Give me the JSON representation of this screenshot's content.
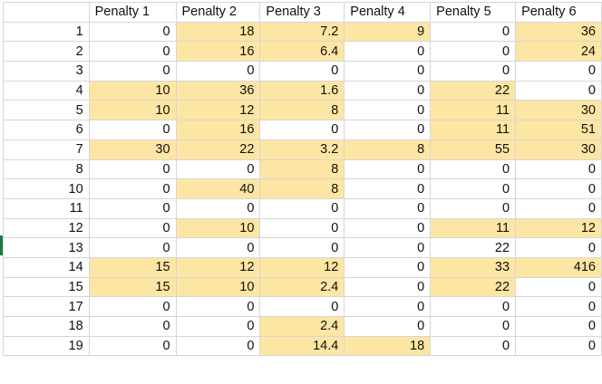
{
  "colors": {
    "highlight": "#fde6a3",
    "gridline": "#d6d6d6",
    "selection_marker": "#1d7a43"
  },
  "sheet": {
    "columns": [
      "Penalty 1",
      "Penalty 2",
      "Penalty 3",
      "Penalty 4",
      "Penalty 5",
      "Penalty 6"
    ],
    "rows": [
      {
        "id": "1",
        "values": [
          "0",
          "18",
          "7.2",
          "9",
          "0",
          "36"
        ],
        "highlight": [
          false,
          true,
          true,
          true,
          false,
          true
        ]
      },
      {
        "id": "2",
        "values": [
          "0",
          "16",
          "6.4",
          "0",
          "0",
          "24"
        ],
        "highlight": [
          false,
          true,
          true,
          false,
          false,
          true
        ]
      },
      {
        "id": "3",
        "values": [
          "0",
          "0",
          "0",
          "0",
          "0",
          "0"
        ],
        "highlight": [
          false,
          false,
          false,
          false,
          false,
          false
        ]
      },
      {
        "id": "4",
        "values": [
          "10",
          "36",
          "1.6",
          "0",
          "22",
          "0"
        ],
        "highlight": [
          true,
          true,
          true,
          false,
          true,
          false
        ]
      },
      {
        "id": "5",
        "values": [
          "10",
          "12",
          "8",
          "0",
          "11",
          "30"
        ],
        "highlight": [
          true,
          true,
          true,
          false,
          true,
          true
        ]
      },
      {
        "id": "6",
        "values": [
          "0",
          "16",
          "0",
          "0",
          "11",
          "51"
        ],
        "highlight": [
          false,
          true,
          false,
          false,
          true,
          true
        ]
      },
      {
        "id": "7",
        "values": [
          "30",
          "22",
          "3.2",
          "8",
          "55",
          "30"
        ],
        "highlight": [
          true,
          true,
          true,
          true,
          true,
          true
        ]
      },
      {
        "id": "8",
        "values": [
          "0",
          "0",
          "8",
          "0",
          "0",
          "0"
        ],
        "highlight": [
          false,
          false,
          true,
          false,
          false,
          false
        ]
      },
      {
        "id": "10",
        "values": [
          "0",
          "40",
          "8",
          "0",
          "0",
          "0"
        ],
        "highlight": [
          false,
          true,
          true,
          false,
          false,
          false
        ]
      },
      {
        "id": "11",
        "values": [
          "0",
          "0",
          "0",
          "0",
          "0",
          "0"
        ],
        "highlight": [
          false,
          false,
          false,
          false,
          false,
          false
        ]
      },
      {
        "id": "12",
        "values": [
          "0",
          "10",
          "0",
          "0",
          "11",
          "12"
        ],
        "highlight": [
          false,
          true,
          false,
          false,
          true,
          true
        ]
      },
      {
        "id": "13",
        "values": [
          "0",
          "0",
          "0",
          "0",
          "22",
          "0"
        ],
        "highlight": [
          false,
          false,
          false,
          false,
          false,
          false
        ]
      },
      {
        "id": "14",
        "values": [
          "15",
          "12",
          "12",
          "0",
          "33",
          "416"
        ],
        "highlight": [
          true,
          true,
          true,
          false,
          true,
          true
        ]
      },
      {
        "id": "15",
        "values": [
          "15",
          "10",
          "2.4",
          "0",
          "22",
          "0"
        ],
        "highlight": [
          true,
          true,
          true,
          false,
          true,
          false
        ]
      },
      {
        "id": "17",
        "values": [
          "0",
          "0",
          "0",
          "0",
          "0",
          "0"
        ],
        "highlight": [
          false,
          false,
          false,
          false,
          false,
          false
        ]
      },
      {
        "id": "18",
        "values": [
          "0",
          "0",
          "2.4",
          "0",
          "0",
          "0"
        ],
        "highlight": [
          false,
          false,
          true,
          false,
          false,
          false
        ]
      },
      {
        "id": "19",
        "values": [
          "0",
          "0",
          "14.4",
          "18",
          "0",
          "0"
        ],
        "highlight": [
          false,
          false,
          true,
          true,
          false,
          false
        ]
      }
    ]
  }
}
